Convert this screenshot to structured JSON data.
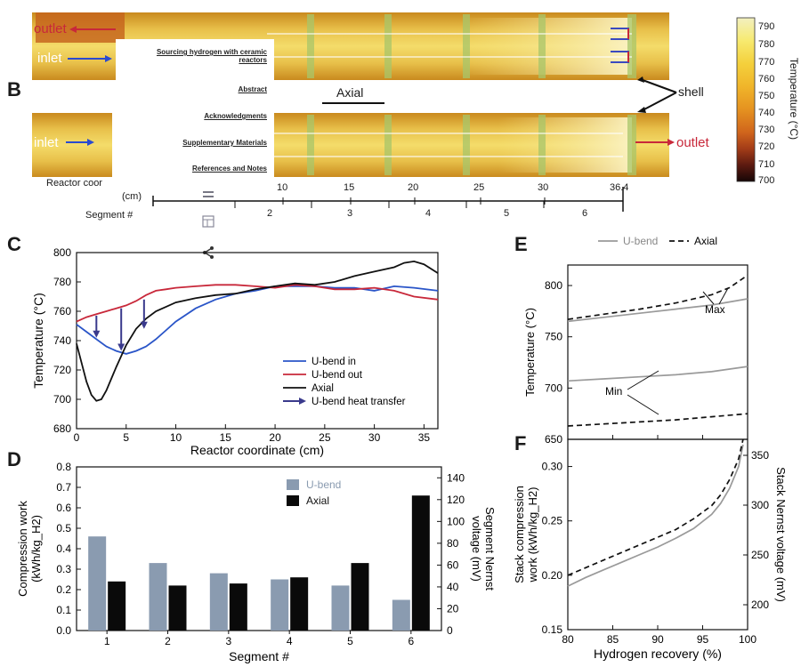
{
  "panels": {
    "b": "B",
    "c": "C",
    "d": "D",
    "e": "E",
    "f": "F"
  },
  "overlay": {
    "toc_title": "Sourcing hydrogen with ceramic reactors",
    "toc_items": [
      "Abstract",
      "Acknowledgments",
      "Supplementary Materials",
      "References and Notes"
    ],
    "tools": [
      "menu-icon",
      "table-icon",
      "share-icon"
    ]
  },
  "reactor": {
    "outlet": "outlet",
    "inlet": "inlet",
    "axial": "Axial",
    "shell": "shell",
    "reactor_coord": "Reactor coor",
    "cm": "(cm)",
    "segment_label": "Segment #",
    "coord_ticks": [
      "10",
      "15",
      "20",
      "25",
      "30",
      "36.4"
    ],
    "segment_ticks": [
      "2",
      "3",
      "4",
      "5",
      "6"
    ]
  },
  "colorbar": {
    "label": "Temperature (°C)",
    "ticks": [
      "790",
      "780",
      "770",
      "760",
      "750",
      "740",
      "730",
      "720",
      "710",
      "700"
    ],
    "colors": [
      "#f2f0c0",
      "#f7ea70",
      "#f4d03c",
      "#f0b52a",
      "#e59220",
      "#d0651c",
      "#a33c18",
      "#5c1a10",
      "#160606"
    ]
  },
  "colors": {
    "ubend_in": "#2a55c8",
    "ubend_out": "#c8283a",
    "axial": "#111111",
    "arrow": "#3a3a8c",
    "bar_ubend": "#8a9bb0",
    "bar_axial": "#0a0a0a",
    "grey_line": "#9a9a9a"
  },
  "chart_data": [
    {
      "id": "C",
      "type": "line",
      "xlabel": "Reactor coordinate (cm)",
      "ylabel": "Temperature (°C)",
      "xlim": [
        0,
        36.4
      ],
      "ylim": [
        680,
        800
      ],
      "xticks": [
        "0",
        "5",
        "10",
        "15",
        "20",
        "25",
        "30",
        "35"
      ],
      "yticks": [
        "680",
        "700",
        "720",
        "740",
        "760",
        "780",
        "800"
      ],
      "series": [
        {
          "name": "U-bend in",
          "x": [
            0,
            1,
            2,
            3,
            4,
            5,
            6,
            7,
            8,
            9,
            10,
            12,
            14,
            16,
            18,
            20,
            22,
            24,
            26,
            28,
            30,
            32,
            34,
            36.4
          ],
          "y": [
            751,
            746,
            741,
            736,
            733,
            731,
            733,
            736,
            741,
            747,
            753,
            762,
            768,
            772,
            774,
            777,
            777,
            777,
            776,
            776,
            774,
            777,
            776,
            774
          ]
        },
        {
          "name": "U-bend out",
          "x": [
            0,
            1,
            2,
            3,
            4,
            5,
            6,
            7,
            8,
            9,
            10,
            12,
            14,
            16,
            18,
            20,
            22,
            24,
            26,
            28,
            30,
            32,
            34,
            36.4
          ],
          "y": [
            753,
            756,
            758,
            760,
            762,
            764,
            767,
            771,
            774,
            775,
            776,
            777,
            778,
            778,
            777,
            776,
            778,
            777,
            775,
            775,
            776,
            774,
            770,
            768
          ]
        },
        {
          "name": "Axial",
          "x": [
            0,
            0.5,
            1,
            1.5,
            2,
            2.5,
            3,
            4,
            5,
            6,
            7,
            8,
            9,
            10,
            12,
            14,
            16,
            18,
            20,
            22,
            24,
            26,
            28,
            30,
            32,
            33,
            34,
            35,
            36.4
          ],
          "y": [
            738,
            725,
            712,
            703,
            699,
            700,
            706,
            722,
            737,
            748,
            755,
            760,
            763,
            766,
            769,
            771,
            772,
            775,
            777,
            779,
            778,
            780,
            784,
            787,
            790,
            793,
            794,
            792,
            786
          ]
        }
      ],
      "heat_transfer": {
        "name": "U-bend heat transfer",
        "arrows": [
          {
            "x": 2,
            "from": 757,
            "to": 742
          },
          {
            "x": 4.5,
            "from": 762,
            "to": 733
          },
          {
            "x": 6.8,
            "from": 768,
            "to": 748
          }
        ]
      }
    },
    {
      "id": "D",
      "type": "bar",
      "xlabel": "Segment #",
      "ylabel": "Compression work (kWh/kg_H2)",
      "y2label": "Segment Nernst voltage (mV)",
      "categories": [
        "1",
        "2",
        "3",
        "4",
        "5",
        "6"
      ],
      "ylim": [
        0,
        0.8
      ],
      "y2lim": [
        0,
        150
      ],
      "yticks": [
        "0.0",
        "0.1",
        "0.2",
        "0.3",
        "0.4",
        "0.5",
        "0.6",
        "0.7",
        "0.8"
      ],
      "y2ticks": [
        "0",
        "20",
        "40",
        "60",
        "80",
        "100",
        "120",
        "140"
      ],
      "series": [
        {
          "name": "U-bend",
          "values": [
            0.46,
            0.33,
            0.28,
            0.25,
            0.22,
            0.15
          ]
        },
        {
          "name": "Axial",
          "values": [
            0.24,
            0.22,
            0.23,
            0.26,
            0.33,
            0.66
          ]
        }
      ]
    },
    {
      "id": "E",
      "type": "line",
      "ylabel": "Temperature (°C)",
      "xlim": [
        80,
        100
      ],
      "ylim": [
        650,
        820
      ],
      "yticks": [
        "650",
        "700",
        "750",
        "800"
      ],
      "legend": [
        "U-bend",
        "Axial"
      ],
      "annotations": [
        "Max",
        "Min"
      ],
      "series": [
        {
          "name": "U-bend max",
          "x": [
            80,
            84,
            88,
            92,
            96,
            100
          ],
          "y": [
            765,
            769,
            773,
            777,
            781,
            787
          ]
        },
        {
          "name": "Axial max",
          "x": [
            80,
            84,
            88,
            92,
            96,
            98,
            100
          ],
          "y": [
            767,
            772,
            777,
            783,
            791,
            798,
            810
          ]
        },
        {
          "name": "U-bend min",
          "x": [
            80,
            84,
            88,
            92,
            96,
            100
          ],
          "y": [
            707,
            709,
            711,
            713,
            716,
            721
          ]
        },
        {
          "name": "Axial min",
          "x": [
            80,
            84,
            88,
            92,
            96,
            100
          ],
          "y": [
            663,
            665,
            667,
            669,
            672,
            675
          ]
        }
      ]
    },
    {
      "id": "F",
      "type": "line",
      "xlabel": "Hydrogen recovery (%)",
      "ylabel": "Stack compression work (kWh/kg_H2)",
      "y2label": "Stack Nernst voltage (mV)",
      "xlim": [
        80,
        100
      ],
      "ylim": [
        0.15,
        0.325
      ],
      "xticks": [
        "80",
        "85",
        "90",
        "95",
        "100"
      ],
      "yticks": [
        "0.15",
        "0.20",
        "0.25",
        "0.30"
      ],
      "y2ticks": [
        "200",
        "250",
        "300",
        "350"
      ],
      "series": [
        {
          "name": "U-bend",
          "x": [
            80,
            82,
            84,
            86,
            88,
            90,
            92,
            94,
            96,
            97,
            98,
            99,
            99.5
          ],
          "y": [
            0.19,
            0.198,
            0.205,
            0.212,
            0.219,
            0.226,
            0.234,
            0.243,
            0.256,
            0.266,
            0.28,
            0.3,
            0.32
          ]
        },
        {
          "name": "Axial",
          "x": [
            80,
            82,
            84,
            86,
            88,
            90,
            92,
            94,
            96,
            97,
            98,
            99,
            99.5
          ],
          "y": [
            0.2,
            0.207,
            0.214,
            0.221,
            0.228,
            0.235,
            0.242,
            0.252,
            0.264,
            0.274,
            0.288,
            0.307,
            0.325
          ]
        }
      ]
    }
  ]
}
